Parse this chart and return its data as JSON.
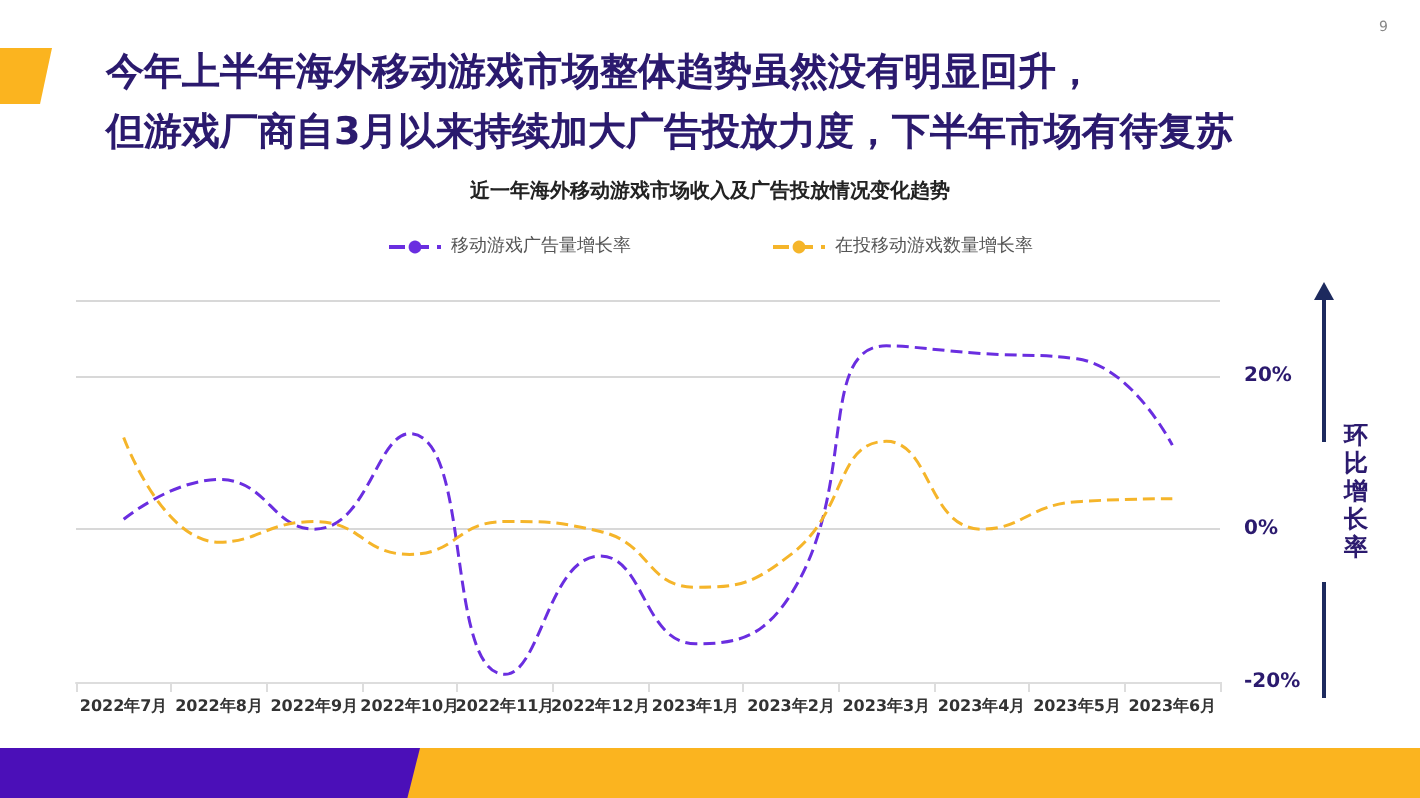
{
  "chart_data": {
    "type": "line",
    "title": "今年上半年海外移动游戏市场整体趋势虽然没有明显回升，但游戏厂商自3月以来持续加大广告投放力度，下半年市场有待复苏",
    "subtitle": "近一年海外移动游戏市场收入及广告投放情况变化趋势",
    "ylabel": "环比增长率",
    "categories": [
      "2022年7月",
      "2022年8月",
      "2022年9月",
      "2022年10月",
      "2022年11月",
      "2022年12月",
      "2023年1月",
      "2023年2月",
      "2023年3月",
      "2023年4月",
      "2023年5月",
      "2023年6月"
    ],
    "series": [
      {
        "name": "移动游戏广告量增长率",
        "color": "#6a2ee0",
        "values": [
          1.3,
          6.5,
          0,
          12.5,
          -19,
          -3.5,
          -15,
          -8.5,
          24,
          23,
          22.3,
          11
        ]
      },
      {
        "name": "在投移动游戏数量增长率",
        "color": "#f5b52a",
        "values": [
          12,
          -1.7,
          1,
          -3.3,
          1,
          -0.3,
          -7.6,
          -3.3,
          11.5,
          0,
          3.6,
          4
        ]
      }
    ],
    "ylim": [
      -20,
      30
    ],
    "yticks": [
      {
        "value": -20,
        "label": "-20%"
      },
      {
        "value": 0,
        "label": "0%"
      },
      {
        "value": 20,
        "label": "20%"
      },
      {
        "value": 30,
        "label": null
      }
    ],
    "grid": "y",
    "legend": "top",
    "line_style": "dashed",
    "marker": "none",
    "annotations": [
      "9"
    ]
  }
}
